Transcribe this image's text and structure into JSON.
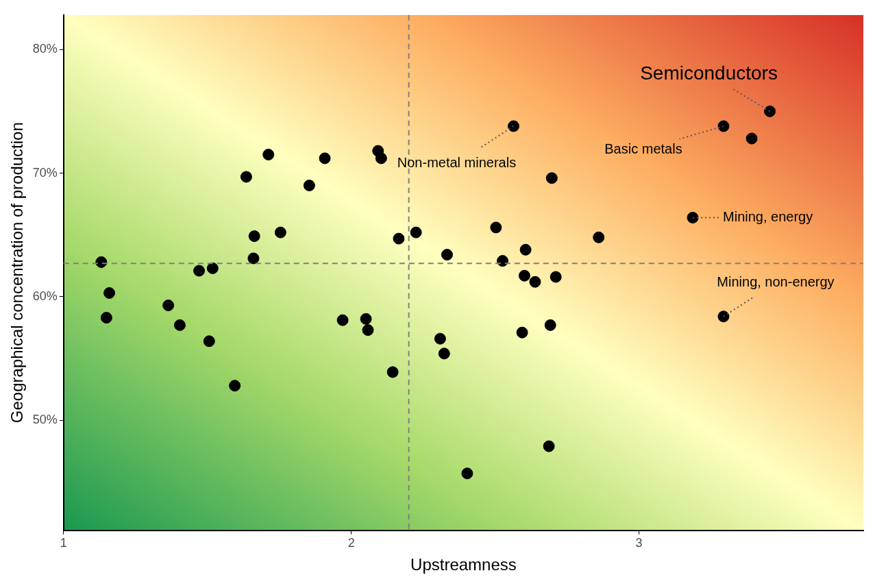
{
  "chart_data": {
    "type": "scatter",
    "xlabel": "Upstreamness",
    "ylabel": "Geographical concentration of production",
    "color": "#000000",
    "marker": "circle",
    "x": [
      3.455,
      3.294,
      3.392,
      3.187,
      3.294,
      2.564,
      2.093,
      2.104,
      1.908,
      1.712,
      1.635,
      1.854,
      2.697,
      1.663,
      1.754,
      2.225,
      2.165,
      2.503,
      2.86,
      2.333,
      2.606,
      2.526,
      1.66,
      1.131,
      1.518,
      1.471,
      1.159,
      2.602,
      2.639,
      2.711,
      1.149,
      1.364,
      1.404,
      1.97,
      2.051,
      2.058,
      2.692,
      2.594,
      1.506,
      2.309,
      2.323,
      2.144,
      1.595,
      2.687,
      2.403
    ],
    "values": [
      75.0,
      73.8,
      72.8,
      66.4,
      58.4,
      73.8,
      71.8,
      71.2,
      71.2,
      71.5,
      69.7,
      69.0,
      69.6,
      64.9,
      65.2,
      65.2,
      64.7,
      65.6,
      64.8,
      63.4,
      63.8,
      62.9,
      63.1,
      62.8,
      62.3,
      62.1,
      60.3,
      61.7,
      61.2,
      61.6,
      58.3,
      59.3,
      57.7,
      58.1,
      58.2,
      57.3,
      57.7,
      57.1,
      56.4,
      56.6,
      55.4,
      53.9,
      52.8,
      47.9,
      45.7
    ],
    "xlim": [
      1,
      3.78
    ],
    "ylim": [
      41.1,
      82.8
    ],
    "xticks": [
      1,
      2,
      3
    ],
    "yticks": [
      {
        "value": 50,
        "label": "50%"
      },
      {
        "value": 60,
        "label": "60%"
      },
      {
        "value": 70,
        "label": "70%"
      },
      {
        "value": 80,
        "label": "80%"
      }
    ],
    "ref_lines": [
      {
        "axis": "x",
        "value": 2.2,
        "color": "#7f7f7f",
        "line_style": "dashed"
      },
      {
        "axis": "y",
        "value": 62.7,
        "color": "#7f7f7f",
        "line_style": "dashed"
      }
    ],
    "annotations": [
      {
        "text": "Semiconductors",
        "x": 3.455,
        "y": 75.0
      },
      {
        "text": "Non-metal minerals",
        "x": 2.564,
        "y": 73.8
      },
      {
        "text": "Basic metals",
        "x": 3.294,
        "y": 73.8
      },
      {
        "text": "Mining, energy",
        "x": 3.187,
        "y": 66.4
      },
      {
        "text": "Mining, non-energy",
        "x": 3.294,
        "y": 58.4
      }
    ]
  }
}
